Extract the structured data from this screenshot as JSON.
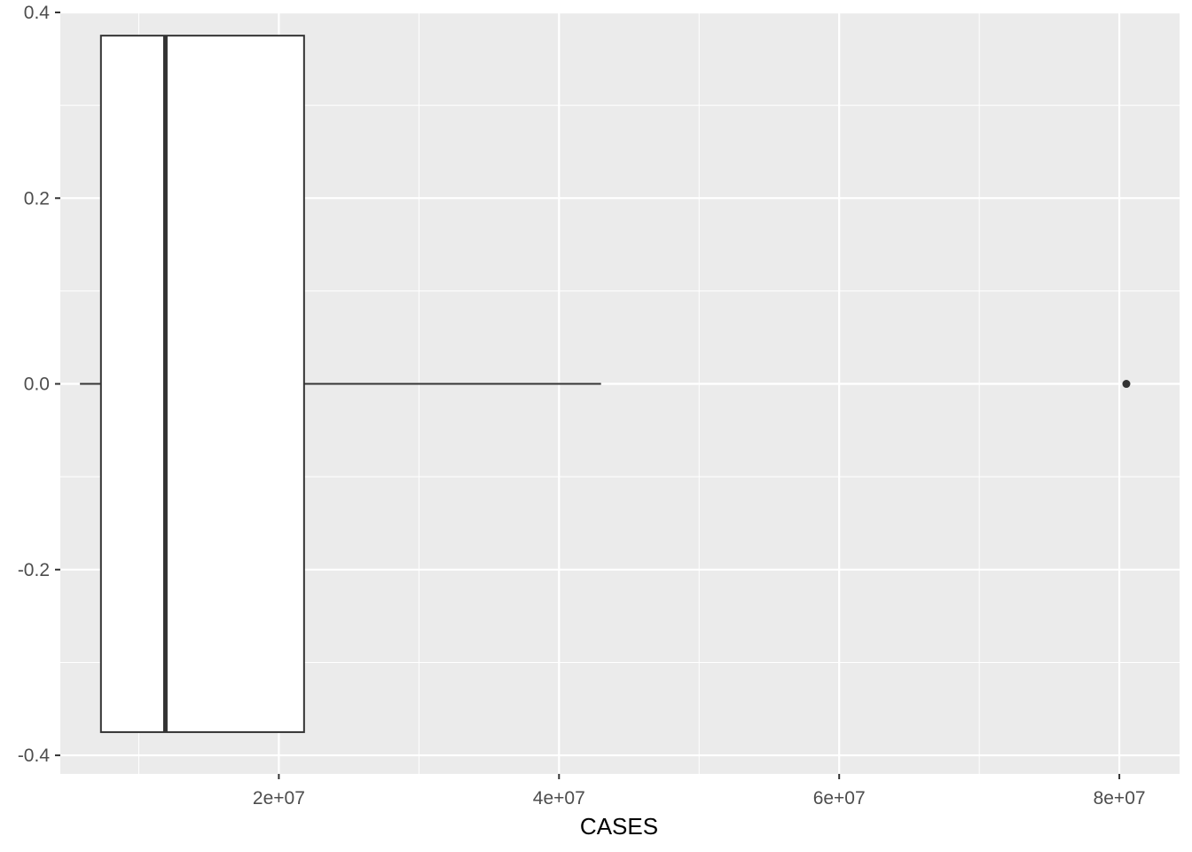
{
  "chart_data": {
    "type": "boxplot",
    "title": "",
    "xlabel": "CASES",
    "ylabel": "",
    "xlim": [
      4400000,
      84300000
    ],
    "ylim": [
      -0.42,
      0.4
    ],
    "x_ticks": [
      {
        "value": 20000000,
        "label": "2e+07"
      },
      {
        "value": 40000000,
        "label": "4e+07"
      },
      {
        "value": 60000000,
        "label": "6e+07"
      },
      {
        "value": 80000000,
        "label": "8e+07"
      }
    ],
    "y_ticks": [
      {
        "value": 0.4,
        "label": "0.4"
      },
      {
        "value": 0.2,
        "label": "0.2"
      },
      {
        "value": 0.0,
        "label": "0.0"
      },
      {
        "value": -0.2,
        "label": "-0.2"
      },
      {
        "value": -0.4,
        "label": "-0.4"
      }
    ],
    "box": {
      "whisker_low": 5800000,
      "q1": 7300000,
      "median": 11900000,
      "q3": 21800000,
      "whisker_high": 43000000,
      "y_center": 0.0,
      "y_half_width": 0.375
    },
    "outliers": [
      {
        "x": 80500000,
        "y": 0.0
      }
    ],
    "grid": true,
    "colors": {
      "panel": "#ebebeb",
      "grid_major": "#ffffff",
      "box_fill": "#ffffff",
      "box_stroke": "#333333"
    }
  }
}
